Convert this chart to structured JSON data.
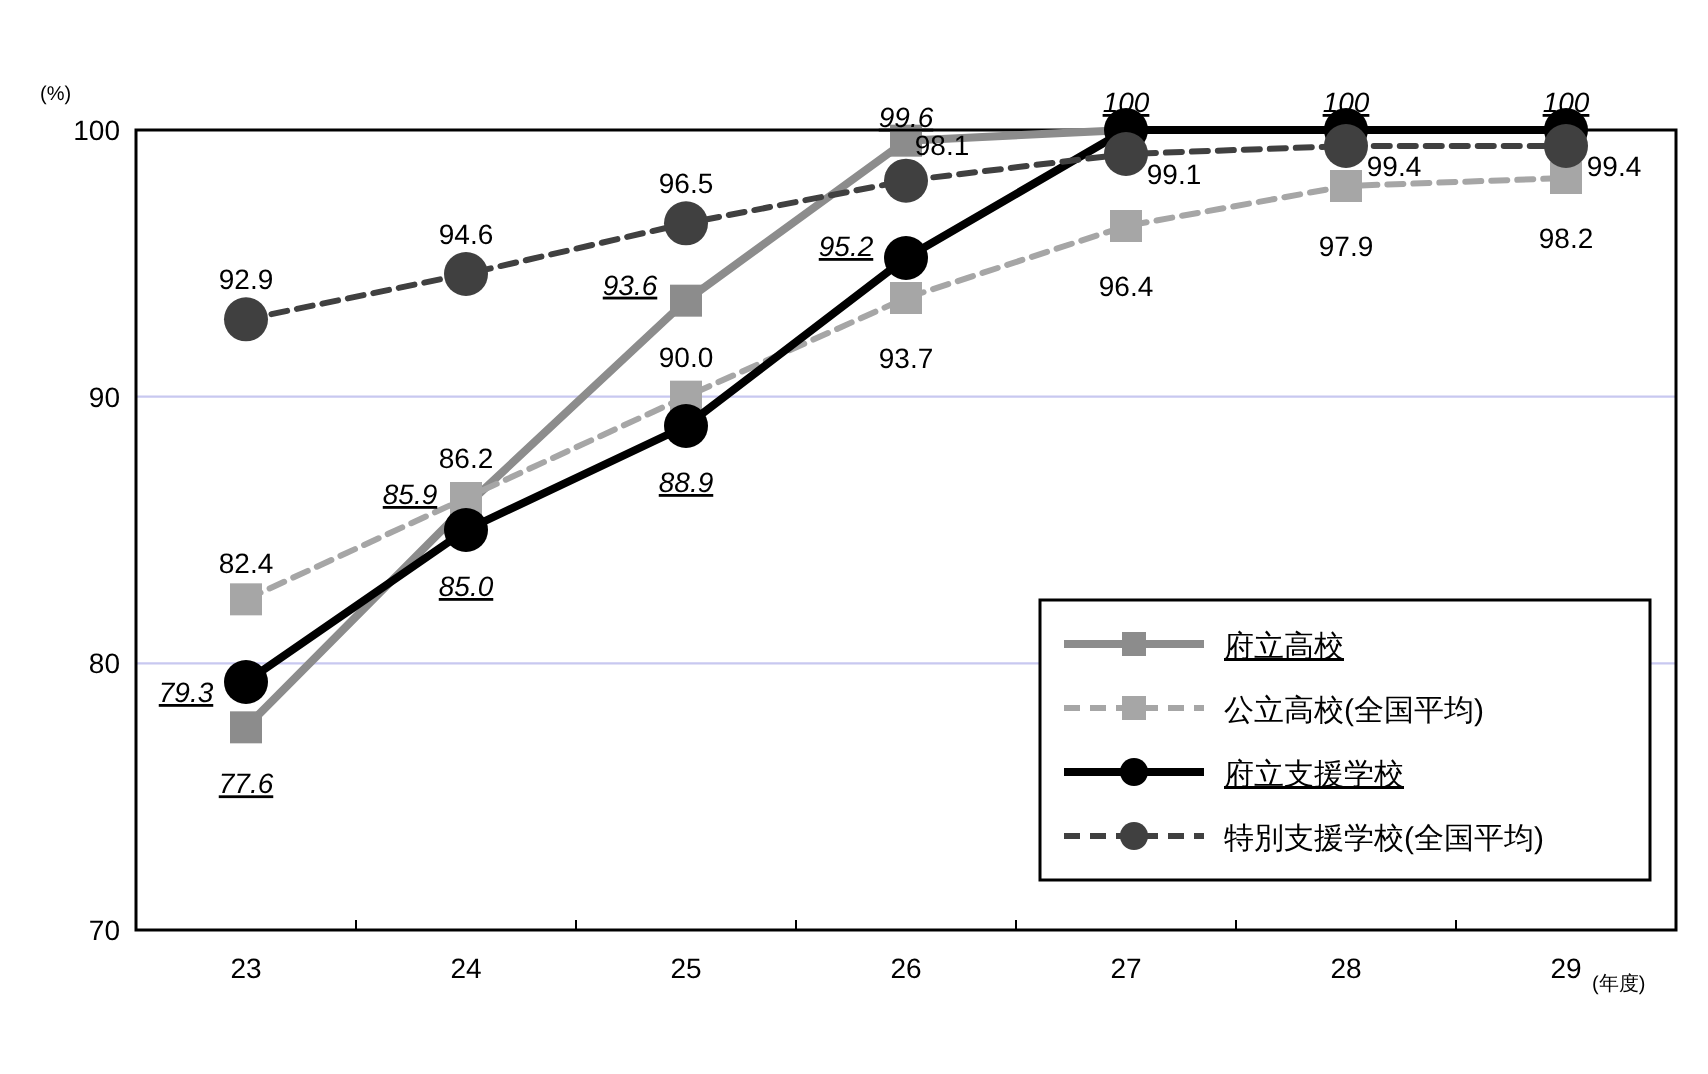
{
  "chart_data": {
    "type": "line",
    "ylabel": "(%)",
    "xlabel": "(年度)",
    "categories": [
      "23",
      "24",
      "25",
      "26",
      "27",
      "28",
      "29"
    ],
    "ylim": [
      70,
      100
    ],
    "yticks": [
      70,
      80,
      90,
      100
    ],
    "grid": "y",
    "legend": "bottom right",
    "series": [
      {
        "name": "府立高校",
        "color": "#8c8c8c",
        "marker": "square",
        "line_style": "solid",
        "values": [
          77.6,
          85.9,
          93.6,
          99.6,
          100,
          100,
          100
        ],
        "value_labels": [
          "77.6",
          "85.9",
          "93.6",
          "99.6",
          null,
          null,
          null
        ]
      },
      {
        "name": "公立高校(全国平均)",
        "color": "#a6a6a6",
        "marker": "square",
        "line_style": "dashed",
        "values": [
          82.4,
          86.2,
          90.0,
          93.7,
          96.4,
          97.9,
          98.2
        ],
        "value_labels": [
          "82.4",
          "86.2",
          "90.0",
          "93.7",
          "96.4",
          "97.9",
          "98.2"
        ]
      },
      {
        "name": "府立支援学校",
        "color": "#000000",
        "marker": "circle",
        "line_style": "solid",
        "values": [
          79.3,
          85.0,
          88.9,
          95.2,
          100,
          100,
          100
        ],
        "value_labels": [
          "79.3",
          "85.0",
          "88.9",
          "95.2",
          "100",
          "100",
          "100"
        ]
      },
      {
        "name": "特別支援学校(全国平均)",
        "color": "#404040",
        "marker": "circle",
        "line_style": "dashed",
        "values": [
          92.9,
          94.6,
          96.5,
          98.1,
          99.1,
          99.4,
          99.4
        ],
        "value_labels": [
          "92.9",
          "94.6",
          "96.5",
          "98.1",
          "99.1",
          "99.4",
          "99.4"
        ]
      }
    ]
  }
}
